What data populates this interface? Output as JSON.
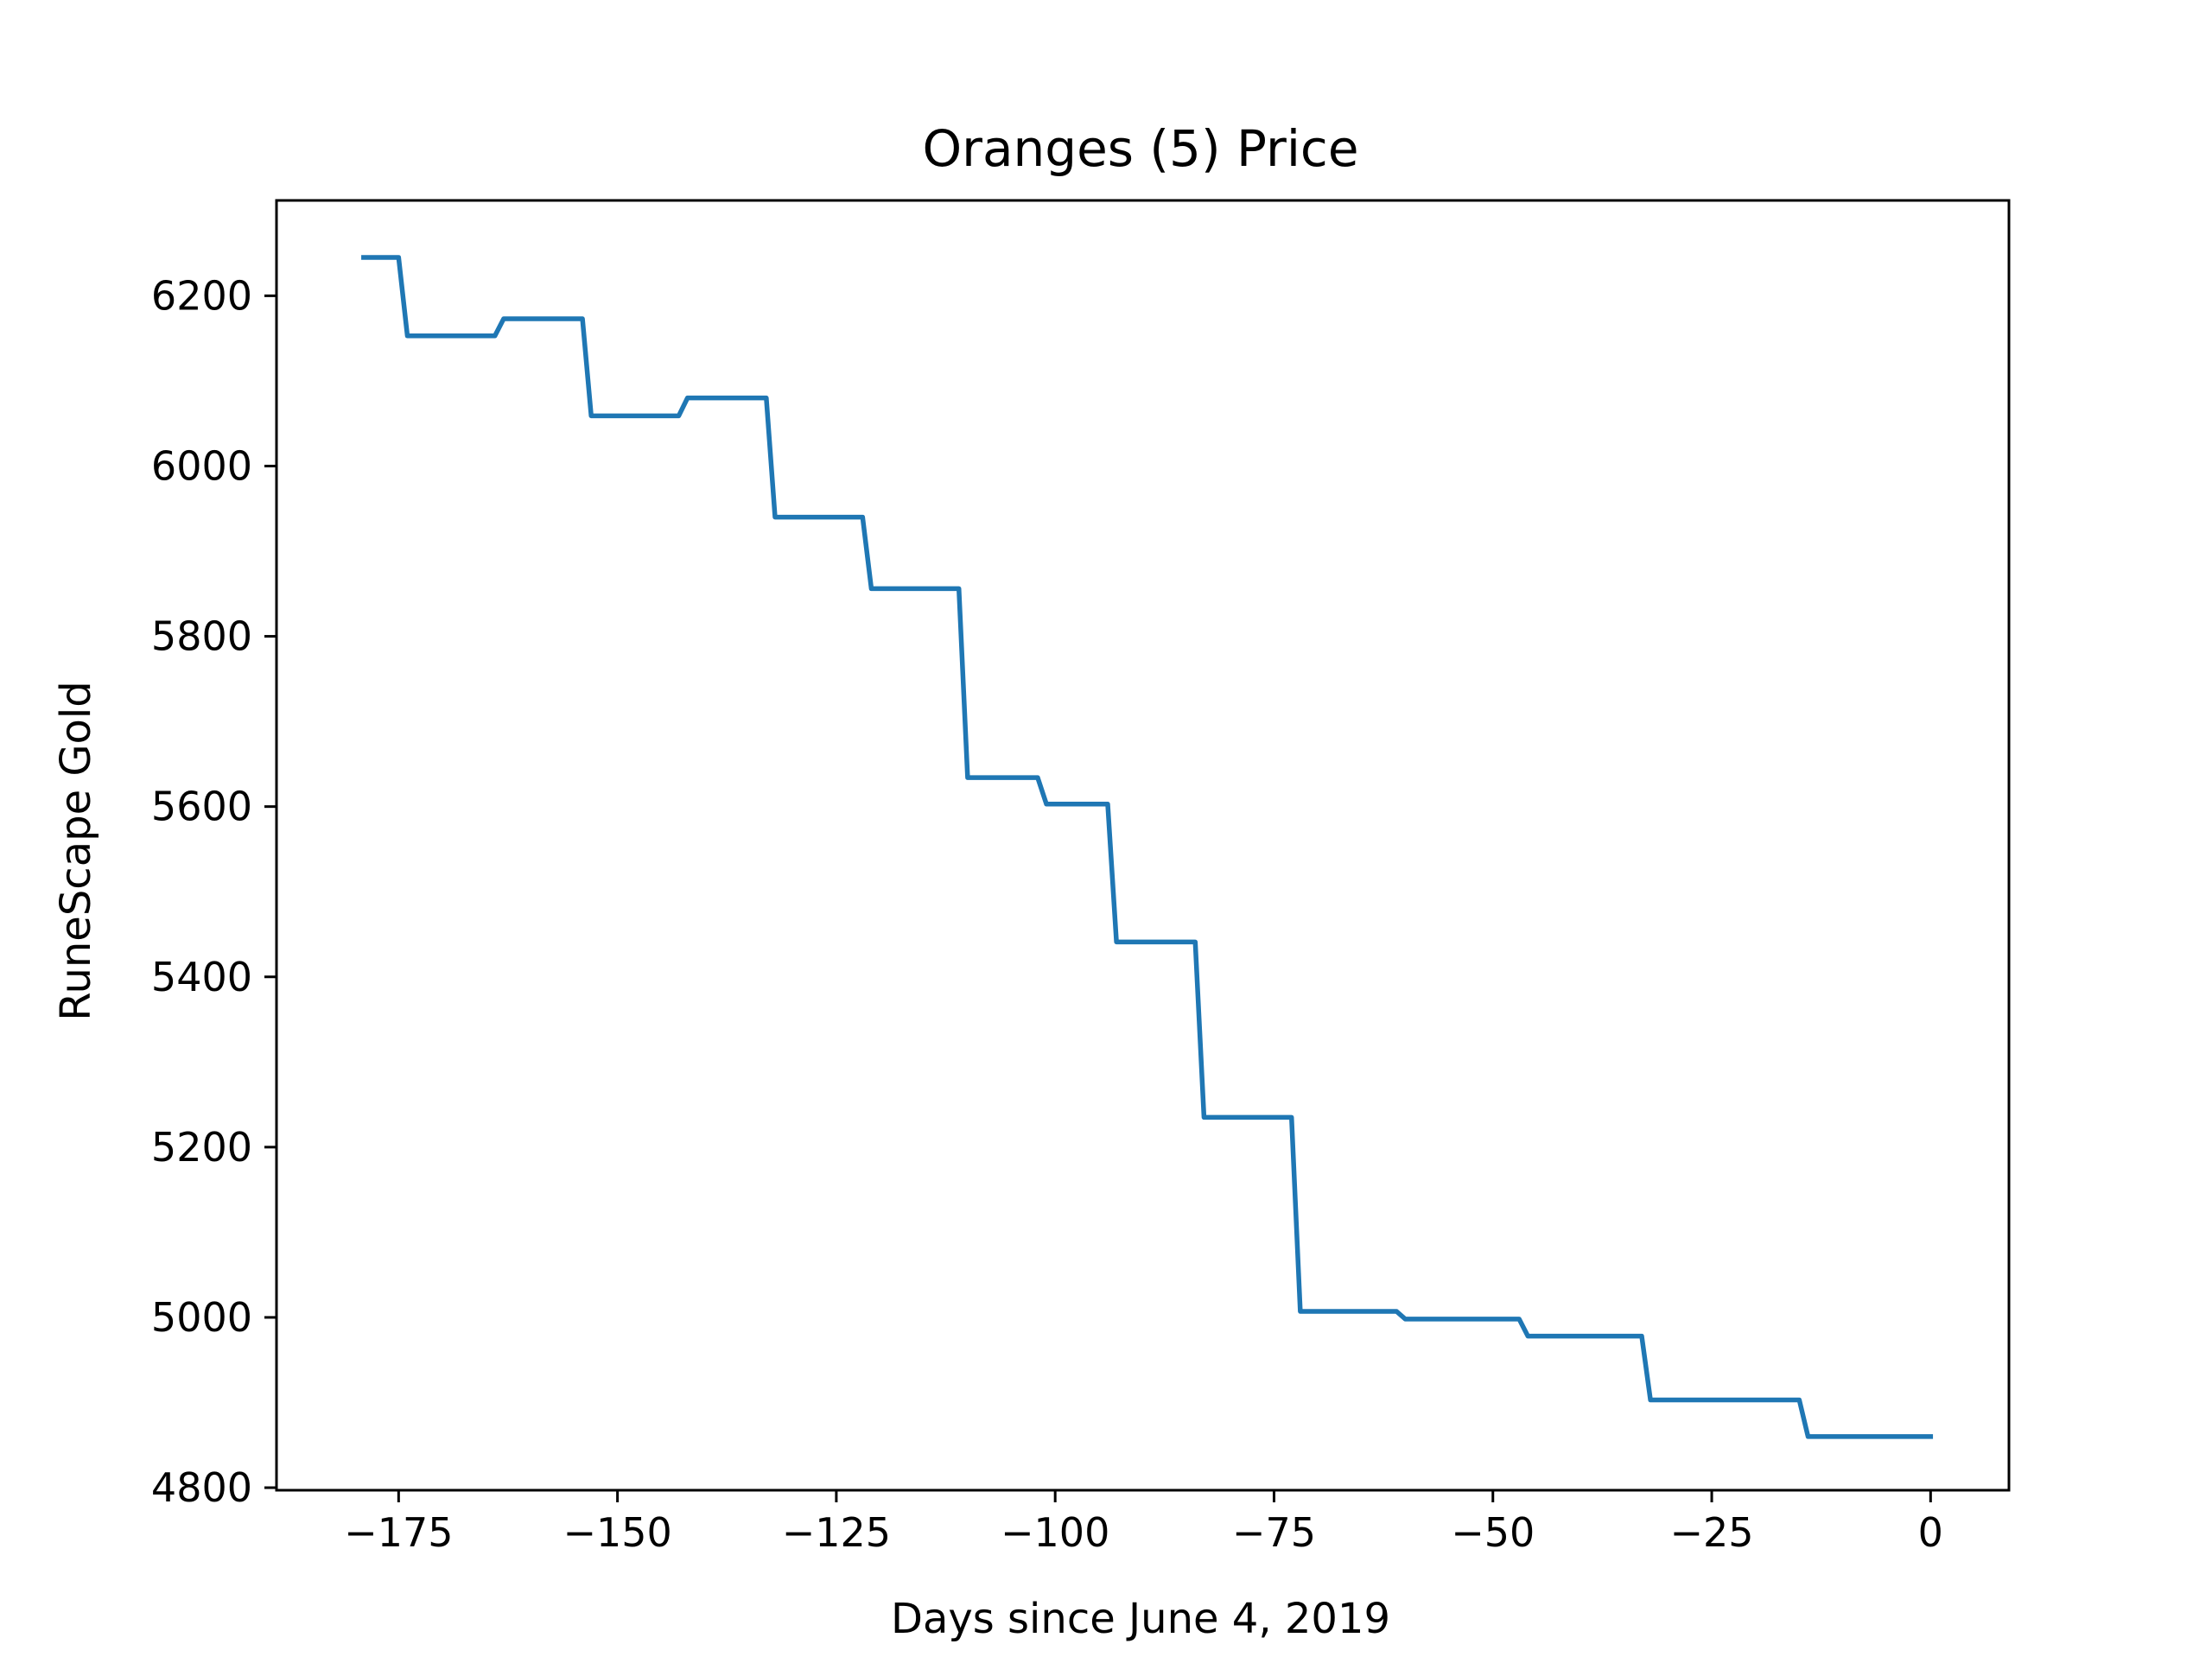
{
  "chart_data": {
    "type": "line",
    "title": "Oranges (5) Price",
    "xlabel": "Days since June 4, 2019",
    "ylabel": "RuneScape Gold",
    "xlim": [
      -188.95,
      8.95
    ],
    "ylim": [
      4797,
      6312
    ],
    "xticks": [
      -175,
      -150,
      -125,
      -100,
      -75,
      -50,
      -25,
      0
    ],
    "yticks": [
      4800,
      5000,
      5200,
      5400,
      5600,
      5800,
      6000,
      6200
    ],
    "grid": false,
    "series": [
      {
        "color": "#1f77b4",
        "x": [
          -179,
          -175,
          -174,
          -164,
          -163,
          -154,
          -153,
          -143,
          -142,
          -133,
          -132,
          -122,
          -121,
          -111,
          -110,
          -102,
          -101,
          -94,
          -93,
          -84,
          -83,
          -73,
          -72,
          -61,
          -60,
          -47,
          -46,
          -33,
          -32,
          -15,
          -14,
          0
        ],
        "y": [
          6245,
          6245,
          6153,
          6153,
          6173,
          6173,
          6059,
          6059,
          6080,
          6080,
          5940,
          5940,
          5856,
          5856,
          5634,
          5634,
          5603,
          5603,
          5441,
          5441,
          5235,
          5235,
          5007,
          5007,
          4998,
          4998,
          4978,
          4978,
          4903,
          4903,
          4860,
          4860
        ]
      }
    ]
  }
}
